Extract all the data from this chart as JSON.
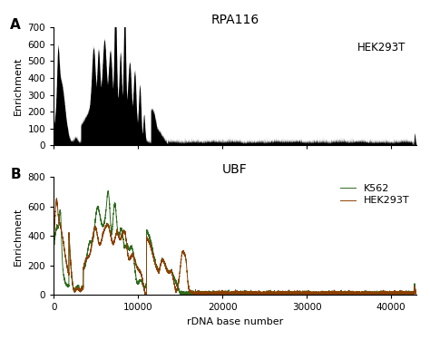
{
  "title_A": "RPA116",
  "title_B": "UBF",
  "xlabel": "rDNA base number",
  "ylabel": "Enrichment",
  "label_A": "A",
  "label_B": "B",
  "legend_A": "HEK293T",
  "legend_B1": "HEK293T",
  "legend_B2": "K562",
  "color_black": "#000000",
  "color_hek": "#8B4000",
  "color_k562": "#2E6B1E",
  "xlim": [
    0,
    43000
  ],
  "ylim_A": [
    0,
    700
  ],
  "ylim_B": [
    0,
    800
  ],
  "yticks_A": [
    0,
    100,
    200,
    300,
    400,
    500,
    600,
    700
  ],
  "yticks_B": [
    0,
    200,
    400,
    600,
    800
  ],
  "xticks": [
    0,
    10000,
    20000,
    30000,
    40000
  ],
  "xticklabels": [
    "0",
    "10000",
    "20000",
    "30000",
    "40000"
  ]
}
